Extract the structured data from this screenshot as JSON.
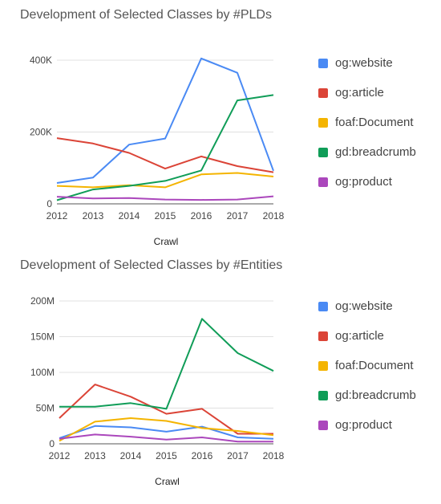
{
  "colors": {
    "og_website": "#4a8af4",
    "og_article": "#db4437",
    "foaf_document": "#f4b400",
    "gd_breadcrumb": "#109d58",
    "og_product": "#ab47bc"
  },
  "chart_data": [
    {
      "type": "line",
      "title": "Development of Selected Classes by #PLDs",
      "xlabel": "Crawl",
      "ylabel": "",
      "x": [
        "2012",
        "2013",
        "2014",
        "2015",
        "2016",
        "2017",
        "2018"
      ],
      "ylim": [
        0,
        400000
      ],
      "yticks": [
        0,
        200000,
        400000
      ],
      "ytick_labels": [
        "0",
        "200K",
        "400K"
      ],
      "grid": true,
      "legend_position": "right",
      "series": [
        {
          "name": "og:website",
          "color": "#4a8af4",
          "values": [
            58000,
            73000,
            165000,
            182000,
            405000,
            365000,
            92000
          ]
        },
        {
          "name": "og:article",
          "color": "#db4437",
          "values": [
            183000,
            168000,
            142000,
            98000,
            132000,
            105000,
            88000
          ]
        },
        {
          "name": "foaf:Document",
          "color": "#f4b400",
          "values": [
            50000,
            46000,
            52000,
            46000,
            82000,
            86000,
            76000
          ]
        },
        {
          "name": "gd:breadcrumb",
          "color": "#109d58",
          "values": [
            10000,
            40000,
            50000,
            64000,
            93000,
            288000,
            303000
          ]
        },
        {
          "name": "og:product",
          "color": "#ab47bc",
          "values": [
            20000,
            15000,
            16000,
            12000,
            11000,
            12000,
            21000
          ]
        }
      ]
    },
    {
      "type": "line",
      "title": "Development of Selected Classes by #Entities",
      "xlabel": "Crawl",
      "ylabel": "",
      "x": [
        "2012",
        "2013",
        "2014",
        "2015",
        "2016",
        "2017",
        "2018"
      ],
      "ylim": [
        0,
        200000000
      ],
      "yticks": [
        0,
        50000000,
        100000000,
        150000000,
        200000000
      ],
      "ytick_labels": [
        "0",
        "50M",
        "100M",
        "150M",
        "200M"
      ],
      "grid": true,
      "legend_position": "right",
      "series": [
        {
          "name": "og:website",
          "color": "#4a8af4",
          "values": [
            8000000,
            25000000,
            23000000,
            17000000,
            24000000,
            9000000,
            7000000
          ]
        },
        {
          "name": "og:article",
          "color": "#db4437",
          "values": [
            36000000,
            83000000,
            66000000,
            42000000,
            49000000,
            14000000,
            14000000
          ]
        },
        {
          "name": "foaf:Document",
          "color": "#f4b400",
          "values": [
            4000000,
            31000000,
            36000000,
            32000000,
            22000000,
            18000000,
            12000000
          ]
        },
        {
          "name": "gd:breadcrumb",
          "color": "#109d58",
          "values": [
            52000000,
            52000000,
            57000000,
            49000000,
            175000000,
            127000000,
            102000000
          ]
        },
        {
          "name": "og:product",
          "color": "#ab47bc",
          "values": [
            7000000,
            13000000,
            10000000,
            6000000,
            9000000,
            3000000,
            3000000
          ]
        }
      ]
    }
  ]
}
